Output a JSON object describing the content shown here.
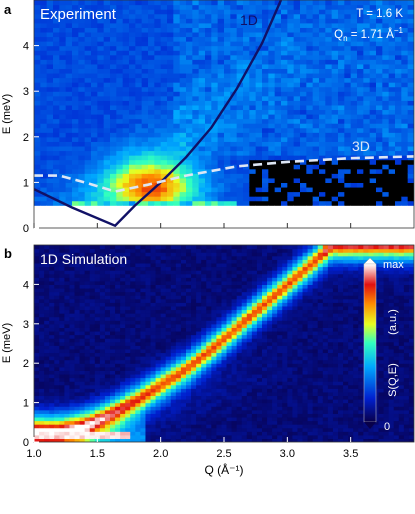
{
  "chart_data": [
    {
      "panel": "a",
      "type": "heatmap",
      "title": "Experiment",
      "annotations": {
        "temperature": "T = 1.6 K",
        "qn": "Q",
        "qn_sub": "n",
        "qn_value": " = 1.71 Å",
        "qn_unit_sup": "−1",
        "curve_1d": "1D",
        "curve_3d": "3D"
      },
      "xlim": [
        1.0,
        4.0
      ],
      "ylim": [
        0,
        5
      ],
      "yticks": [
        0,
        1,
        2,
        3,
        4
      ],
      "ylabel": "E (meV)",
      "colormap": "jet",
      "mask_below_energy": 0.55,
      "intense_region": {
        "q_range": [
          1.5,
          2.5
        ],
        "e_range": [
          0.55,
          2.2
        ],
        "peak_q": 1.95,
        "peak_e": 0.9
      },
      "dark_region": {
        "q_range": [
          2.7,
          4.0
        ],
        "e_range": [
          0.55,
          1.5
        ]
      },
      "curves": [
        {
          "name": "1D",
          "style": "solid",
          "color": "#111166",
          "points": [
            [
              1.0,
              0.85
            ],
            [
              1.3,
              0.45
            ],
            [
              1.64,
              0.05
            ],
            [
              1.8,
              0.5
            ],
            [
              2.0,
              1.0
            ],
            [
              2.2,
              1.55
            ],
            [
              2.4,
              2.2
            ],
            [
              2.6,
              3.05
            ],
            [
              2.8,
              4.05
            ],
            [
              2.95,
              5.0
            ]
          ]
        },
        {
          "name": "3D",
          "style": "dashed",
          "color": "#dde6f5",
          "points": [
            [
              1.0,
              1.15
            ],
            [
              1.2,
              1.15
            ],
            [
              1.4,
              1.0
            ],
            [
              1.64,
              0.8
            ],
            [
              1.9,
              0.95
            ],
            [
              2.2,
              1.15
            ],
            [
              2.6,
              1.35
            ],
            [
              3.0,
              1.45
            ],
            [
              3.5,
              1.53
            ],
            [
              4.0,
              1.57
            ]
          ]
        }
      ]
    },
    {
      "panel": "b",
      "type": "heatmap",
      "title": "1D Simulation",
      "xlim": [
        1.0,
        4.0
      ],
      "ylim": [
        0,
        5
      ],
      "xticks": [
        1.0,
        1.5,
        2.0,
        2.5,
        3.0,
        3.5
      ],
      "yticks": [
        0,
        1,
        2,
        3,
        4
      ],
      "xlabel": "Q (Å⁻¹)",
      "ylabel": "E (meV)",
      "colormap": "jet",
      "ridge": [
        [
          1.2,
          0.25
        ],
        [
          1.4,
          0.4
        ],
        [
          1.6,
          0.7
        ],
        [
          1.8,
          1.05
        ],
        [
          2.0,
          1.45
        ],
        [
          2.2,
          1.85
        ],
        [
          2.4,
          2.35
        ],
        [
          2.6,
          2.9
        ],
        [
          2.8,
          3.45
        ],
        [
          3.0,
          4.0
        ],
        [
          3.2,
          4.55
        ],
        [
          3.35,
          5.0
        ]
      ],
      "hot_loop": {
        "q_range": [
          1.0,
          1.75
        ],
        "e_range": [
          0.05,
          0.3
        ]
      },
      "colorbar": {
        "label": "S(Q,E)",
        "unit": "(a.u.)",
        "max_label": "max",
        "min_label": "0"
      }
    }
  ]
}
